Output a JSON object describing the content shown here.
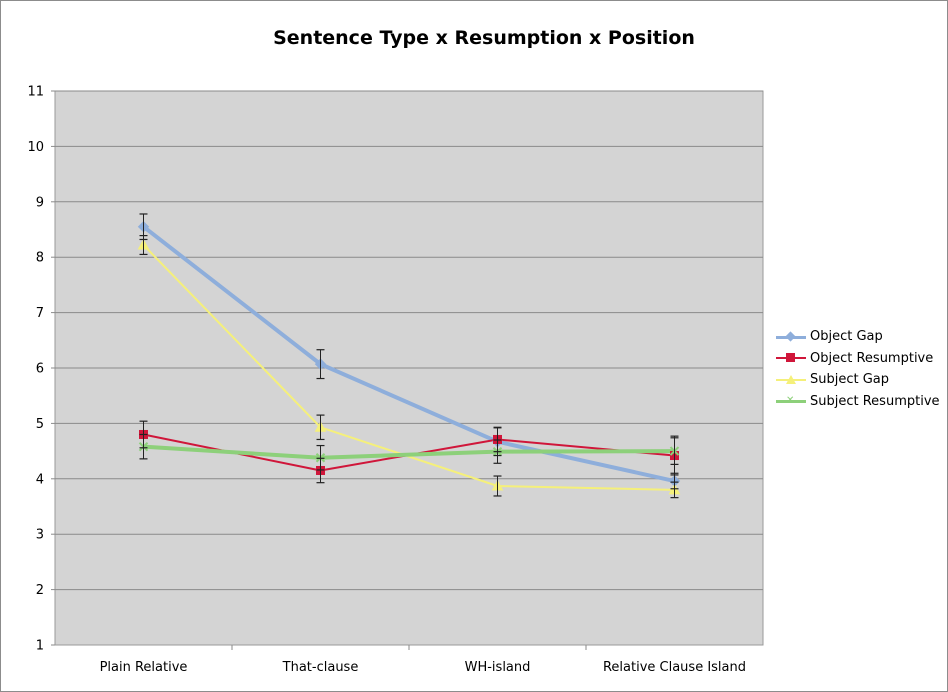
{
  "chart_data": {
    "type": "line",
    "title": "Sentence Type x Resumption x Position",
    "xlabel": "",
    "ylabel": "",
    "categories": [
      "Plain Relative",
      "That-clause",
      "WH-island",
      "Relative Clause Island"
    ],
    "ylim": [
      1,
      11
    ],
    "yticks": [
      1,
      2,
      3,
      4,
      5,
      6,
      7,
      8,
      9,
      10,
      11
    ],
    "grid": true,
    "legend_position": "right",
    "series": [
      {
        "name": "Object Gap",
        "color": "#8eaedb",
        "marker": "diamond",
        "values": [
          8.55,
          6.07,
          4.67,
          3.96
        ],
        "error": [
          0.23,
          0.26,
          0.25,
          0.14
        ]
      },
      {
        "name": "Object Resumptive",
        "color": "#d0163a",
        "marker": "square",
        "values": [
          4.8,
          4.15,
          4.71,
          4.42
        ],
        "error": [
          0.24,
          0.22,
          0.22,
          0.35
        ]
      },
      {
        "name": "Subject Gap",
        "color": "#f5f07a",
        "marker": "triangle",
        "values": [
          8.22,
          4.93,
          3.87,
          3.8
        ],
        "error": [
          0.17,
          0.22,
          0.18,
          0.14
        ]
      },
      {
        "name": "Subject Resumptive",
        "color": "#8dd07a",
        "marker": "x",
        "values": [
          4.58,
          4.38,
          4.49,
          4.5
        ],
        "error": [
          0.22,
          0.22,
          0.21,
          0.24
        ]
      }
    ]
  }
}
